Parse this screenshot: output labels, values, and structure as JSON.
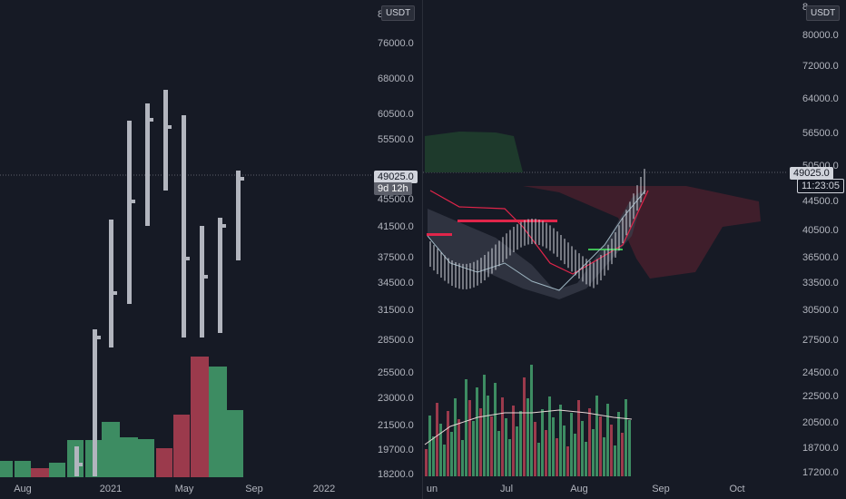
{
  "currency": "USDT",
  "left_chart": {
    "price_axis_labels": [
      "76000.0",
      "68000.0",
      "60500.0",
      "55500.0",
      "49025.0",
      "45500.0",
      "41500.0",
      "37500.0",
      "34500.0",
      "31500.0",
      "28500.0",
      "25500.0",
      "23000.0",
      "21500.0",
      "19700.0",
      "18200.0"
    ],
    "top_axis_partial": "8",
    "time_axis_labels": [
      "Aug",
      "2021",
      "May",
      "Sep",
      "2022"
    ],
    "last_price": "49025.0",
    "countdown": "9d 12h"
  },
  "right_chart": {
    "price_axis_labels": [
      "80000.0",
      "72000.0",
      "64000.0",
      "56500.0",
      "50500.0",
      "44500.0",
      "40500.0",
      "36500.0",
      "33500.0",
      "30500.0",
      "27500.0",
      "24500.0",
      "22500.0",
      "20500.0",
      "18700.0",
      "17200.0"
    ],
    "top_axis_partial": "8",
    "time_axis_labels": [
      "un",
      "Jul",
      "Aug",
      "Sep",
      "Oct"
    ],
    "last_price": "49025.0",
    "countdown": "11:23:05"
  },
  "colors": {
    "background": "#161a25",
    "bar_gray": "#b2b5be",
    "vol_green": "#3d8c62",
    "vol_red": "#9b3a4c",
    "cloud_green": "#1e3a2c",
    "cloud_red": "#4a1f2d",
    "kijun": "#e0254a",
    "tenkan_green": "#3fbe55"
  }
}
